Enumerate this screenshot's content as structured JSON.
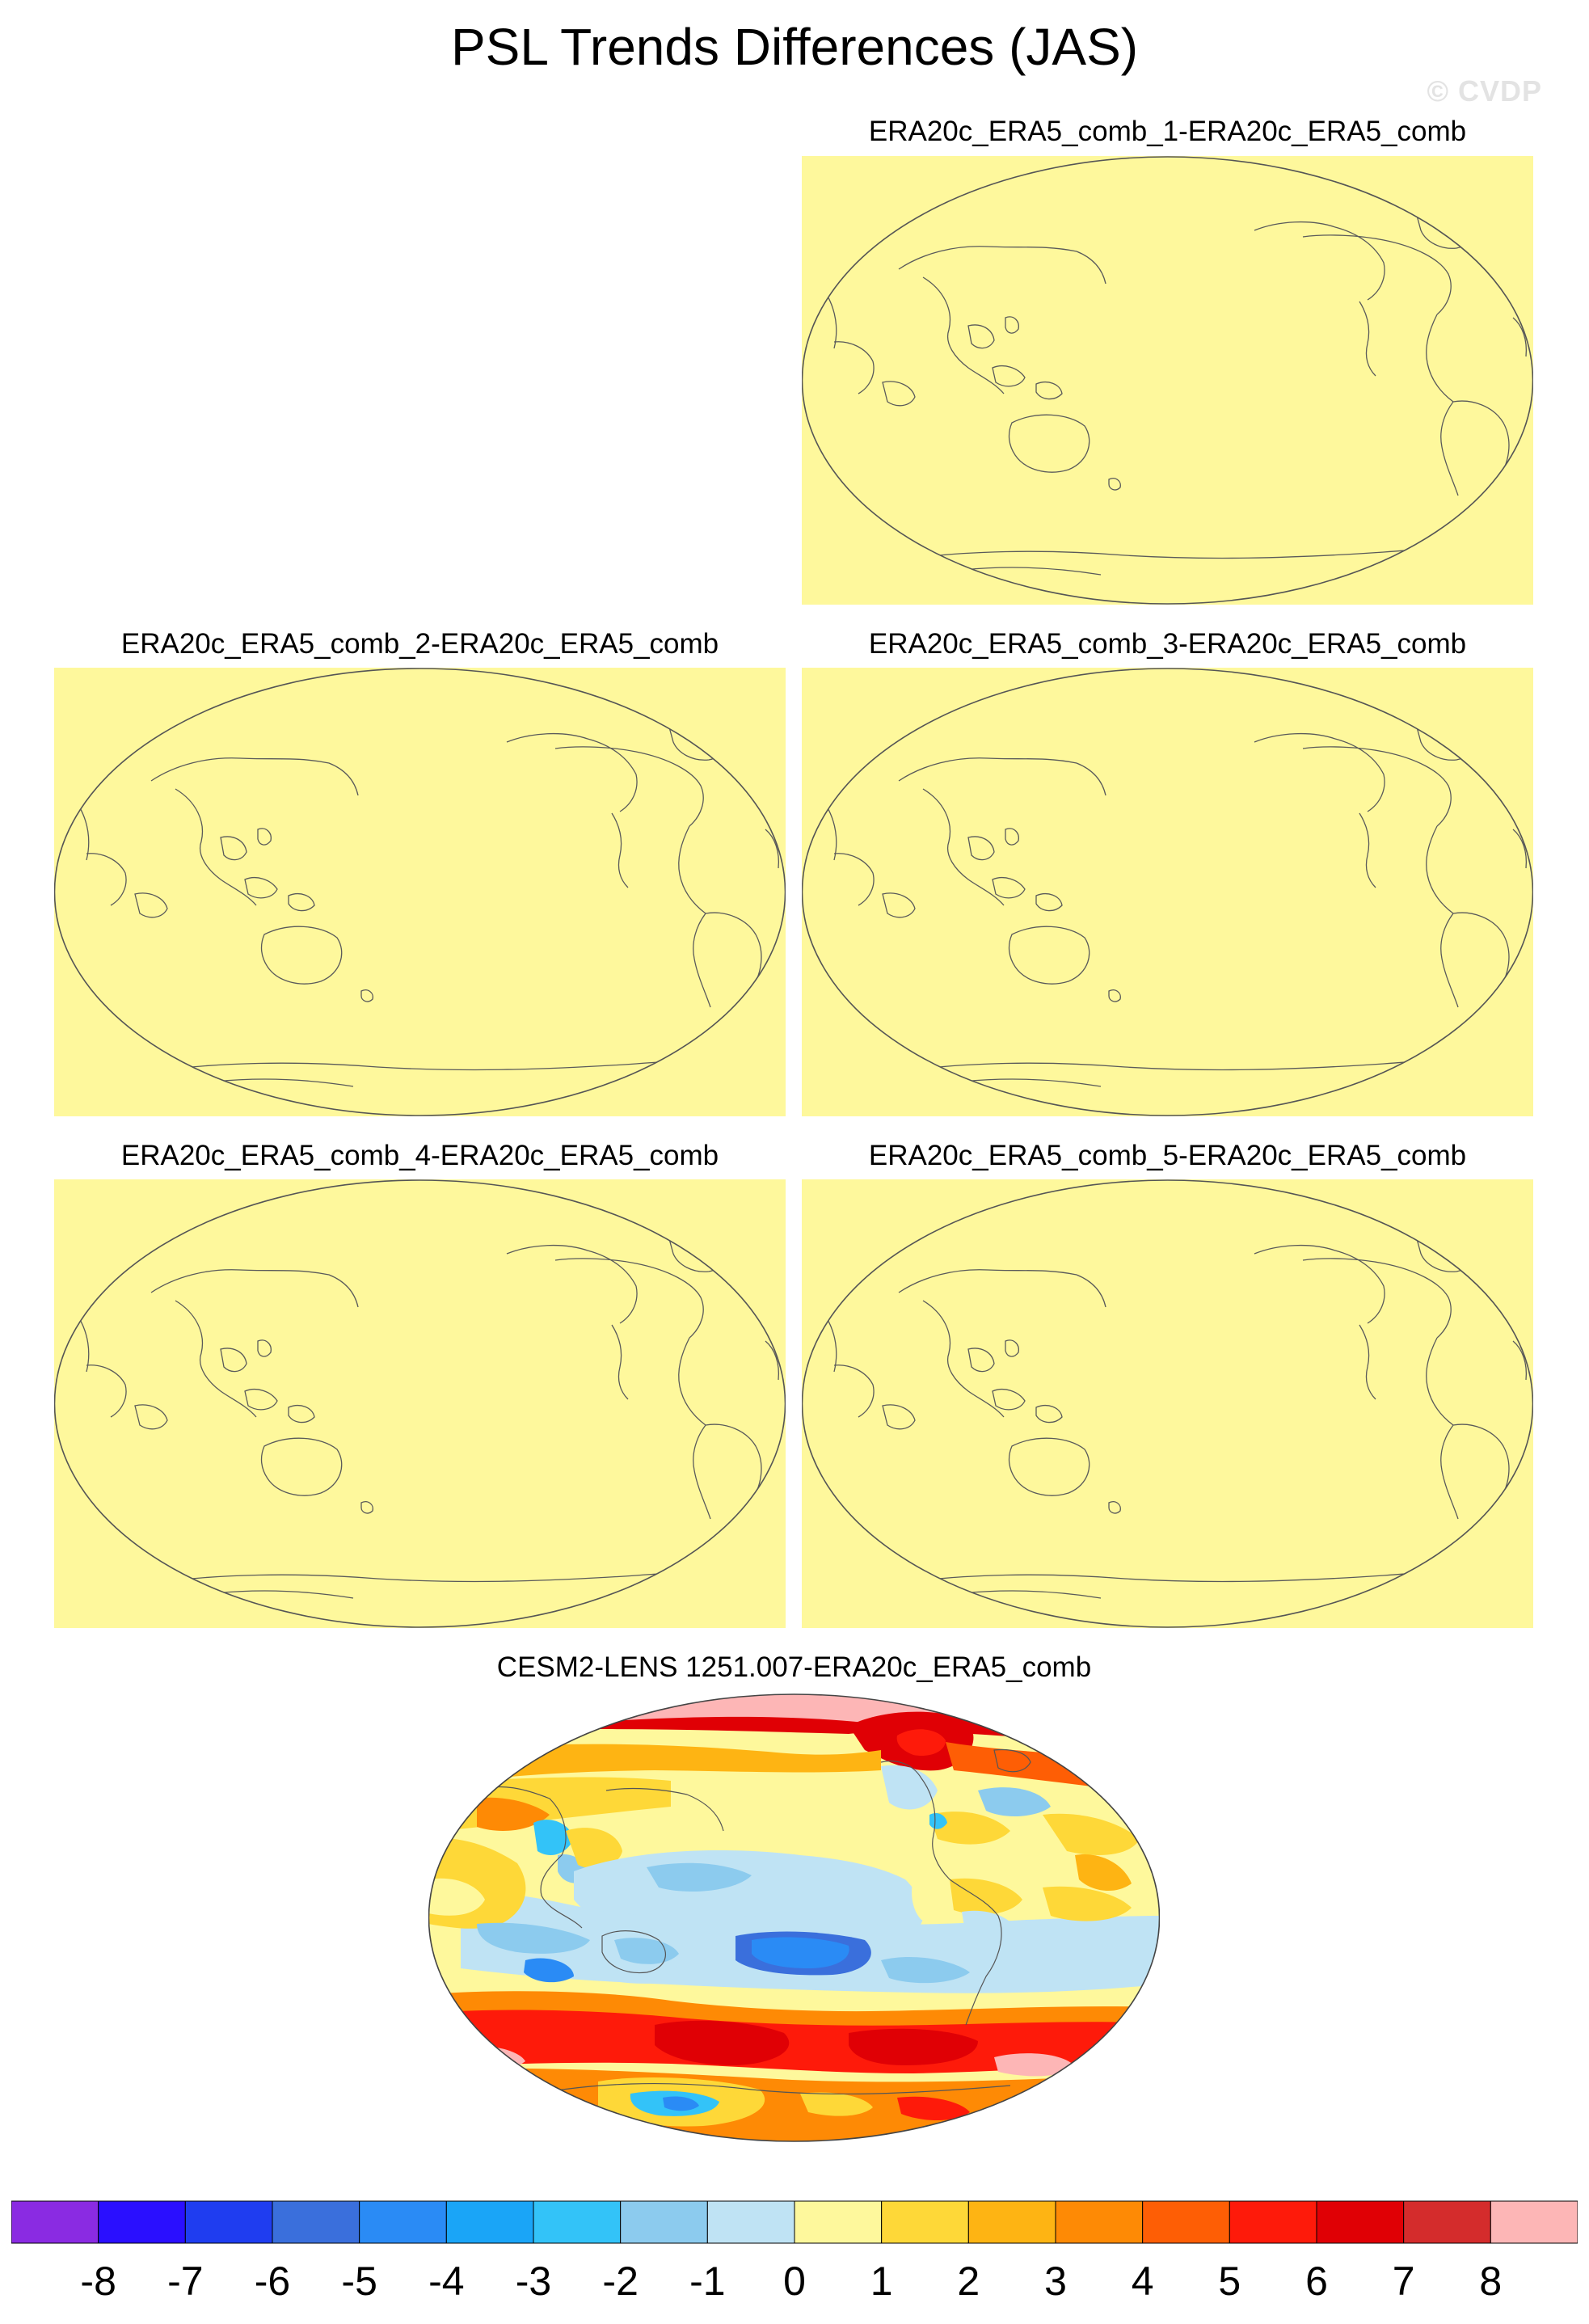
{
  "title": "PSL Trends Differences (JAS)",
  "watermark": "© CVDP",
  "panels": [
    {
      "title": "ERA20c_ERA5_comb_1-ERA20c_ERA5_comb",
      "fill": "#fef89c"
    },
    {
      "title": "ERA20c_ERA5_comb_2-ERA20c_ERA5_comb",
      "fill": "#fef89c"
    },
    {
      "title": "ERA20c_ERA5_comb_3-ERA20c_ERA5_comb",
      "fill": "#fef89c"
    },
    {
      "title": "ERA20c_ERA5_comb_4-ERA20c_ERA5_comb",
      "fill": "#fef89c"
    },
    {
      "title": "ERA20c_ERA5_comb_5-ERA20c_ERA5_comb",
      "fill": "#fef89c"
    },
    {
      "title": "CESM2-LENS 1251.007-ERA20c_ERA5_comb",
      "fill": "#fef89c"
    }
  ],
  "colorbar": {
    "ticks": [
      "-8",
      "-7",
      "-6",
      "-5",
      "-4",
      "-3",
      "-2",
      "-1",
      "0",
      "1",
      "2",
      "3",
      "4",
      "5",
      "6",
      "7",
      "8"
    ],
    "colors": [
      "#8a2be2",
      "#2a0fff",
      "#1f3df0",
      "#3a6fdc",
      "#2a8bf5",
      "#1aa5f7",
      "#33c3f8",
      "#8ccbee",
      "#bfe3f4",
      "#fef89c",
      "#fed838",
      "#feb413",
      "#fe8a05",
      "#fe5e05",
      "#fe1a0a",
      "#e00005",
      "#d42c2c",
      "#fdb6b6"
    ]
  }
}
